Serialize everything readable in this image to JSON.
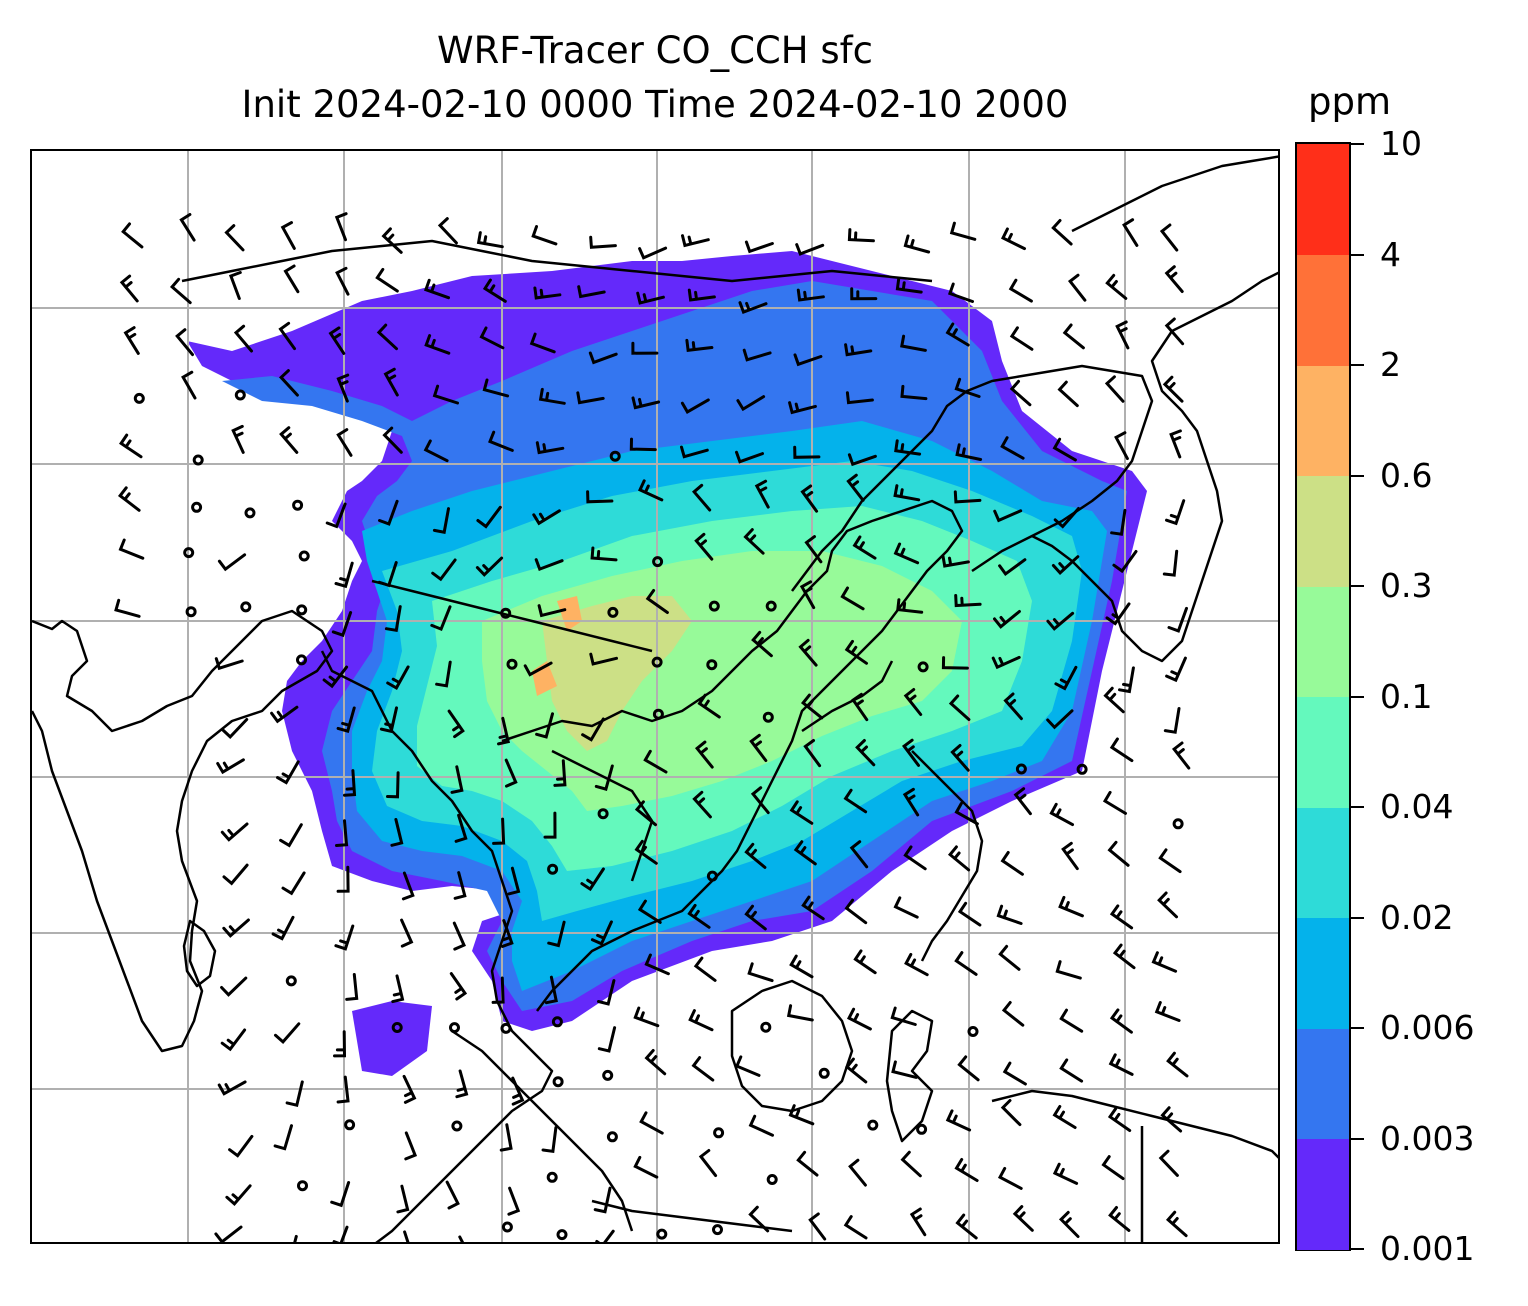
{
  "title": {
    "line1": "WRF-Tracer CO_CCH sfc",
    "line2": "Init 2024-02-10 0000 Time 2024-02-10 2000"
  },
  "colorbar": {
    "units": "ppm",
    "ticks": [
      "0.001",
      "0.003",
      "0.006",
      "0.02",
      "0.04",
      "0.1",
      "0.3",
      "0.6",
      "2",
      "4",
      "10"
    ],
    "colors": [
      "#6429fa",
      "#3476f0",
      "#04b2eb",
      "#2edbd8",
      "#64f9bd",
      "#97fa99",
      "#cce086",
      "#feb263",
      "#ff7138",
      "#ff2f19"
    ]
  },
  "map": {
    "field_colors": [
      "#6429fa",
      "#3476f0",
      "#04b2eb",
      "#2edbd8",
      "#64f9bd",
      "#97fa99",
      "#cce086",
      "#feb263"
    ],
    "gridline_color": "#b0b0b0",
    "coastline_color": "#000000",
    "wind_barb_color": "#000000"
  }
}
